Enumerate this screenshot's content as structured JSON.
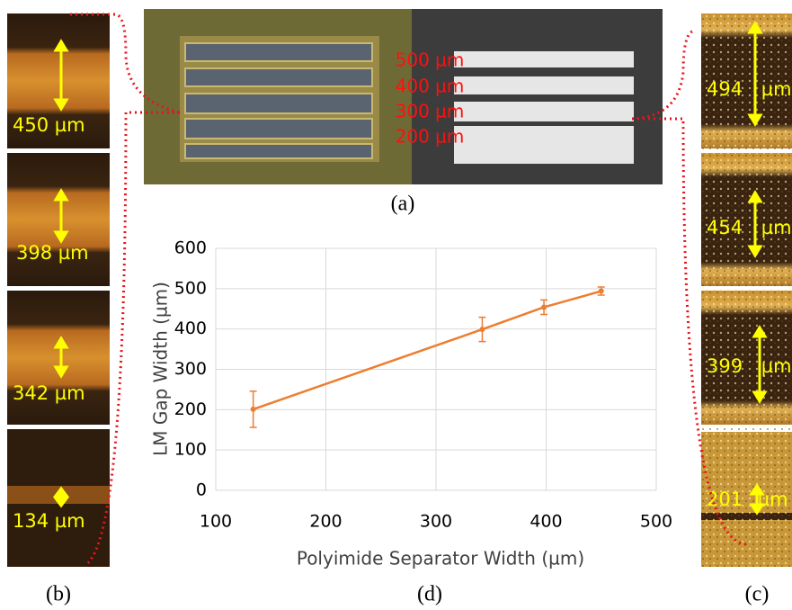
{
  "chart_data": {
    "type": "line",
    "x_label": "Polyimide Separator Width (µm)",
    "y_label": "LM Gap Width (µm)",
    "x": [
      134,
      342,
      398,
      450
    ],
    "values": [
      201,
      399,
      454,
      494
    ],
    "errors": [
      45,
      30,
      18,
      10
    ],
    "color": "#ed7d31",
    "xlim": [
      100,
      500
    ],
    "xticks": [
      100,
      200,
      300,
      400,
      500
    ],
    "ylim": [
      0,
      600
    ],
    "yticks": [
      0,
      100,
      200,
      300,
      400,
      500,
      600
    ],
    "grid": true
  },
  "panels": {
    "a": {
      "label": "(a)",
      "widths": [
        "500 µm",
        "400 µm",
        "300 µm",
        "200 µm"
      ]
    },
    "b": {
      "label": "(b)",
      "measurements": [
        "450 µm",
        "398 µm",
        "342 µm",
        "134 µm"
      ]
    },
    "c": {
      "label": "(c)",
      "measurements": [
        "494 µm",
        "454 µm",
        "399 µm",
        "201 µm"
      ]
    },
    "d": {
      "label": "(d)"
    }
  }
}
